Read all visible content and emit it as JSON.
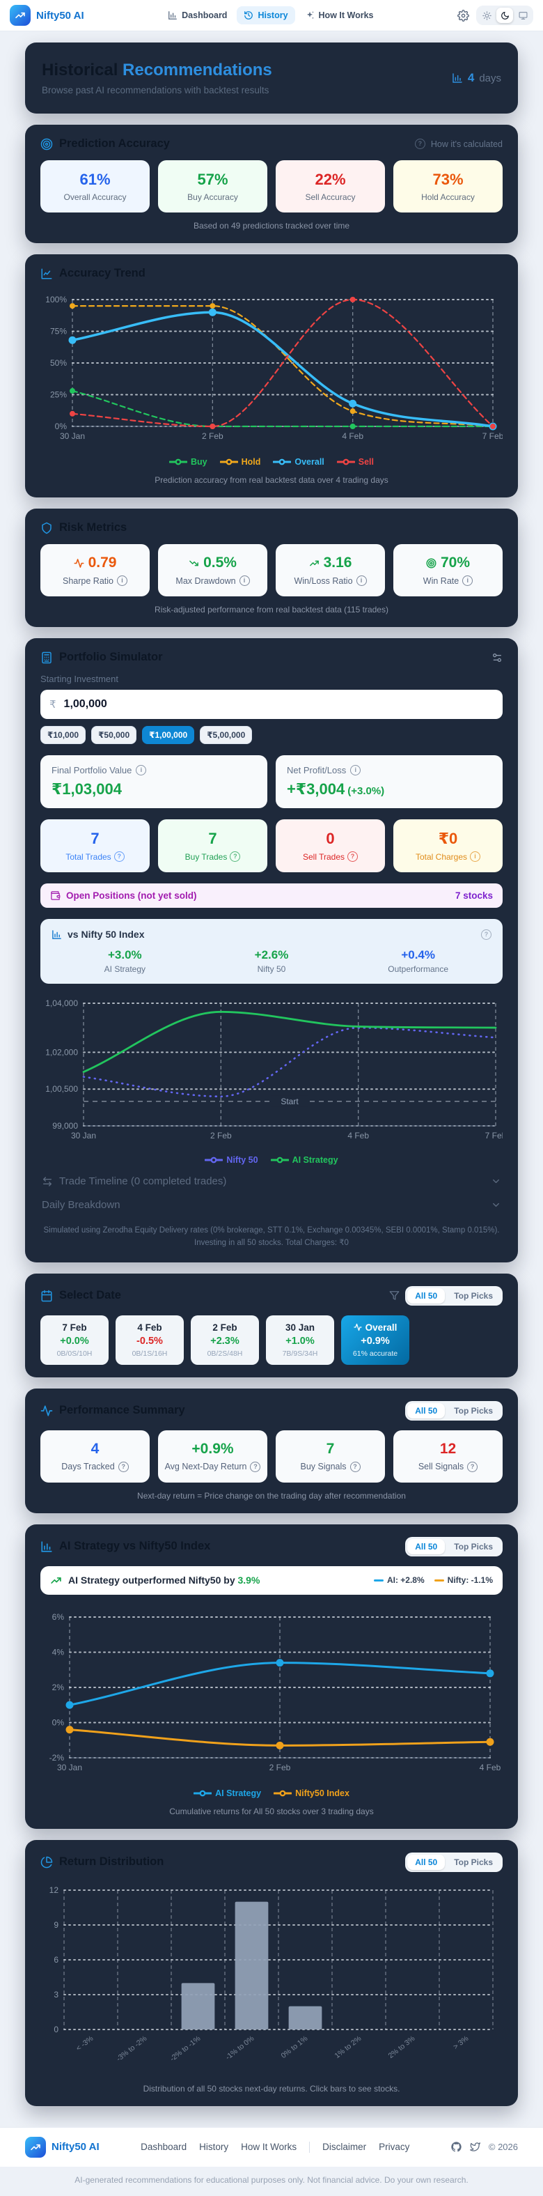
{
  "header": {
    "brand": "Nifty50 AI",
    "nav": [
      {
        "label": "Dashboard"
      },
      {
        "label": "History"
      },
      {
        "label": "How It Works"
      }
    ]
  },
  "hero": {
    "title_muted": "Historical",
    "title_accent": "Recommendations",
    "subtitle": "Browse past AI recommendations with backtest results",
    "days_value": "4",
    "days_unit": "days"
  },
  "filters": {
    "all": "All 50",
    "top": "Top Picks"
  },
  "prediction_accuracy": {
    "title": "Prediction Accuracy",
    "how_link": "How it's calculated",
    "cards": [
      {
        "value": "61%",
        "label": "Overall Accuracy"
      },
      {
        "value": "57%",
        "label": "Buy Accuracy"
      },
      {
        "value": "22%",
        "label": "Sell Accuracy"
      },
      {
        "value": "73%",
        "label": "Hold Accuracy"
      }
    ],
    "caption": "Based on 49 predictions tracked over time"
  },
  "accuracy_trend": {
    "title": "Accuracy Trend",
    "caption": "Prediction accuracy from real backtest data over 4 trading days"
  },
  "risk_metrics": {
    "title": "Risk Metrics",
    "cards": [
      {
        "value": "0.79",
        "label": "Sharpe Ratio"
      },
      {
        "value": "0.5%",
        "label": "Max Drawdown"
      },
      {
        "value": "3.16",
        "label": "Win/Loss Ratio"
      },
      {
        "value": "70%",
        "label": "Win Rate"
      }
    ],
    "caption": "Risk-adjusted performance from real backtest data (115 trades)"
  },
  "portfolio_simulator": {
    "title": "Portfolio Simulator",
    "input_label": "Starting Investment",
    "currency": "₹",
    "input_value": "1,00,000",
    "presets": [
      {
        "label": "₹10,000"
      },
      {
        "label": "₹50,000"
      },
      {
        "label": "₹1,00,000"
      },
      {
        "label": "₹5,00,000"
      }
    ],
    "final_value": {
      "label": "Final Portfolio Value",
      "value": "₹1,03,004"
    },
    "net_profit": {
      "label": "Net Profit/Loss",
      "value": "+₹3,004",
      "extra": "(+3.0%)"
    },
    "stat_cards": [
      {
        "value": "7",
        "label": "Total Trades"
      },
      {
        "value": "7",
        "label": "Buy Trades"
      },
      {
        "value": "0",
        "label": "Sell Trades"
      },
      {
        "value": "₹0",
        "label": "Total Charges"
      }
    ],
    "open_positions": {
      "label": "Open Positions (not yet sold)",
      "value": "7 stocks"
    },
    "vs_nifty": {
      "title": "vs Nifty 50 Index",
      "cols": [
        {
          "value": "+3.0%",
          "label": "AI Strategy"
        },
        {
          "value": "+2.6%",
          "label": "Nifty 50"
        },
        {
          "value": "+0.4%",
          "label": "Outperformance"
        }
      ]
    },
    "trade_timeline": "Trade Timeline (0 completed trades)",
    "daily_breakdown": "Daily Breakdown",
    "disclaimer": "Simulated using Zerodha Equity Delivery rates (0% brokerage, STT 0.1%, Exchange 0.00345%, SEBI 0.0001%, Stamp 0.015%). Investing in all 50 stocks. Total Charges: ₹0"
  },
  "select_date": {
    "title": "Select Date",
    "cards": [
      {
        "date": "7 Feb",
        "ret": "+0.0%",
        "detail": "0B/0S/10H"
      },
      {
        "date": "4 Feb",
        "ret": "-0.5%",
        "detail": "0B/1S/16H"
      },
      {
        "date": "2 Feb",
        "ret": "+2.3%",
        "detail": "0B/2S/48H"
      },
      {
        "date": "30 Jan",
        "ret": "+1.0%",
        "detail": "7B/9S/34H"
      },
      {
        "date": "Overall",
        "ret": "+0.9%",
        "detail": "61% accurate"
      }
    ]
  },
  "performance_summary": {
    "title": "Performance Summary",
    "cards": [
      {
        "value": "4",
        "label": "Days Tracked"
      },
      {
        "value": "+0.9%",
        "label": "Avg Next-Day Return"
      },
      {
        "value": "7",
        "label": "Buy Signals"
      },
      {
        "value": "12",
        "label": "Sell Signals"
      }
    ],
    "caption": "Next-day return = Price change on the trading day after recommendation"
  },
  "strategy_section": {
    "title": "AI Strategy vs Nifty50 Index",
    "banner_prefix": "AI Strategy outperformed Nifty50 by",
    "banner_value": "3.9%",
    "ai_legend": "AI: +2.8%",
    "nifty_legend": "Nifty: -1.1%",
    "caption": "Cumulative returns for All 50 stocks over 3 trading days"
  },
  "return_distribution": {
    "title": "Return Distribution",
    "caption": "Distribution of all 50 stocks next-day returns. Click bars to see stocks."
  },
  "footer": {
    "brand": "Nifty50 AI",
    "links": [
      "Dashboard",
      "History",
      "How It Works"
    ],
    "links2": [
      "Disclaimer",
      "Privacy"
    ],
    "copyright": "© 2026",
    "disclaimer": "AI-generated recommendations for educational purposes only. Not financial advice. Do your own research."
  },
  "chart_data": [
    {
      "id": "accuracy_trend",
      "type": "line",
      "title": "Accuracy Trend",
      "x": [
        "30 Jan",
        "2 Feb",
        "4 Feb",
        "7 Feb"
      ],
      "ylim": [
        0,
        100
      ],
      "yticks": [
        {
          "v": 0,
          "label": "0%"
        },
        {
          "v": 25,
          "label": "25%"
        },
        {
          "v": 50,
          "label": "50%"
        },
        {
          "v": 75,
          "label": "75%"
        },
        {
          "v": 100,
          "label": "100%"
        }
      ],
      "legend_position": "bottom",
      "grid": true,
      "series": [
        {
          "name": "Buy",
          "color": "#22c55e",
          "style": "dashed",
          "width": 2.2,
          "r": 4,
          "values": [
            28,
            0,
            0,
            0
          ]
        },
        {
          "name": "Hold",
          "color": "#f0a81c",
          "style": "dashed",
          "width": 2.2,
          "r": 4,
          "values": [
            95,
            95,
            12,
            0
          ]
        },
        {
          "name": "Overall",
          "color": "#38bdf8",
          "style": "solid",
          "width": 3.5,
          "r": 5.5,
          "values": [
            68,
            90,
            18,
            0
          ]
        },
        {
          "name": "Sell",
          "color": "#ef4444",
          "style": "dashed",
          "width": 2.2,
          "r": 4,
          "values": [
            10,
            0,
            100,
            0
          ]
        }
      ]
    },
    {
      "id": "portfolio_value",
      "type": "line",
      "title": "Portfolio Value vs Nifty 50",
      "x": [
        "30 Jan",
        "2 Feb",
        "4 Feb",
        "7 Feb"
      ],
      "ylim": [
        99000,
        104000
      ],
      "yticks": [
        {
          "v": 104000,
          "label": "1,04,000"
        },
        {
          "v": 102000,
          "label": "1,02,000"
        },
        {
          "v": 100500,
          "label": "1,00,500"
        },
        {
          "v": 99000,
          "label": "99,000"
        }
      ],
      "annotation": {
        "v": 100000,
        "label": "Start"
      },
      "grid": true,
      "series": [
        {
          "name": "Nifty 50",
          "color": "#6366f1",
          "style": "dotted",
          "width": 2.6,
          "values": [
            101000,
            100200,
            103000,
            102600
          ]
        },
        {
          "name": "AI Strategy",
          "color": "#22c55e",
          "style": "solid",
          "width": 2.8,
          "values": [
            101200,
            103650,
            103050,
            103004
          ]
        }
      ]
    },
    {
      "id": "strategy_vs_index",
      "type": "line",
      "title": "Cumulative Return %",
      "x": [
        "30 Jan",
        "2 Feb",
        "4 Feb"
      ],
      "ylim": [
        -2,
        6
      ],
      "yticks": [
        {
          "v": 6,
          "label": "6%"
        },
        {
          "v": 4,
          "label": "4%"
        },
        {
          "v": 2,
          "label": "2%"
        },
        {
          "v": 0,
          "label": "0%"
        },
        {
          "v": -2,
          "label": "-2%"
        }
      ],
      "grid": true,
      "series": [
        {
          "name": "AI Strategy",
          "color": "#1ea7e8",
          "style": "solid",
          "width": 3,
          "r": 5.5,
          "values": [
            1.0,
            3.4,
            2.8
          ]
        },
        {
          "name": "Nifty50 Index",
          "color": "#f0a11b",
          "style": "solid",
          "width": 3,
          "r": 5.5,
          "values": [
            -0.4,
            -1.3,
            -1.1
          ]
        }
      ]
    },
    {
      "id": "return_distribution",
      "type": "bar",
      "title": "Return Distribution",
      "categories": [
        "< -3%",
        "-3% to -2%",
        "-2% to -1%",
        "-1% to 0%",
        "0% to 1%",
        "1% to 2%",
        "2% to 3%",
        "> 3%"
      ],
      "values": [
        0,
        0,
        4,
        11,
        2,
        0,
        0,
        0
      ],
      "ylim": [
        0,
        12
      ],
      "yticks": [
        {
          "v": 0,
          "label": "0"
        },
        {
          "v": 3,
          "label": "3"
        },
        {
          "v": 6,
          "label": "6"
        },
        {
          "v": 9,
          "label": "9"
        },
        {
          "v": 12,
          "label": "12"
        }
      ],
      "bar_color": "rgba(148,163,184,0.92)",
      "grid": true
    }
  ]
}
